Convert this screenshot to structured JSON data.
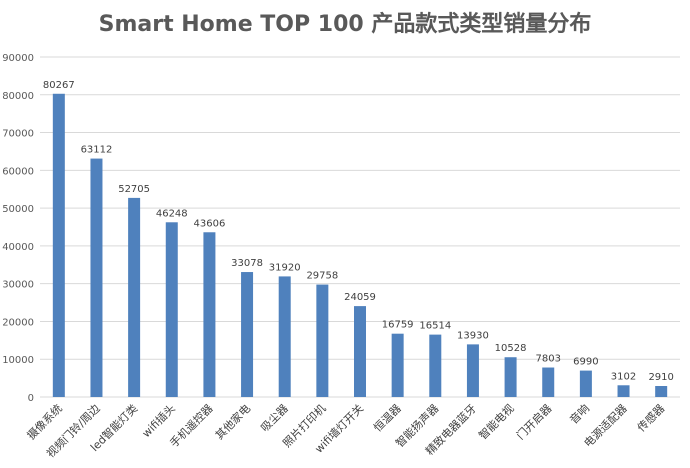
{
  "chart_data": {
    "type": "bar",
    "title": "Smart Home TOP 100 产品款式类型销量分布",
    "categories": [
      "摄像系统",
      "视频门铃/周边",
      "led智能灯类",
      "wifi插头",
      "手机遥控器",
      "其他家电",
      "吸尘器",
      "照片打印机",
      "wifi墙灯开关",
      "恒温器",
      "智能扬声器",
      "精致电器蓝牙",
      "智能电视",
      "门开启器",
      "音响",
      "电源适配器",
      "传感器"
    ],
    "values": [
      80267,
      63112,
      52705,
      46248,
      43606,
      33078,
      31920,
      29758,
      24059,
      16759,
      16514,
      13930,
      10528,
      7803,
      6990,
      3102,
      2910
    ],
    "ylim": [
      0,
      90000
    ],
    "yticks": [
      0,
      10000,
      20000,
      30000,
      40000,
      50000,
      60000,
      70000,
      80000,
      90000
    ],
    "bar_color": "#4f81bd",
    "grid": true,
    "legend": "none",
    "xlabel": "",
    "ylabel": ""
  }
}
